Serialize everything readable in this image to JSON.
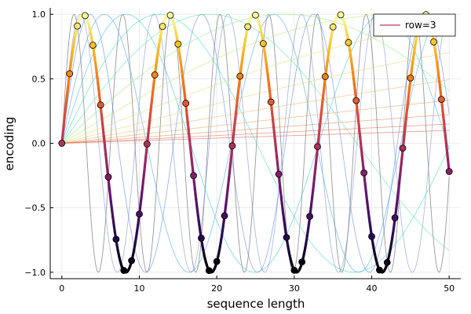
{
  "chart_data": {
    "type": "line",
    "title": "",
    "xlabel": "sequence length",
    "ylabel": "encoding",
    "xlim": [
      -1.5,
      51.5
    ],
    "ylim": [
      -1.05,
      1.05
    ],
    "xticks": [
      0,
      10,
      20,
      30,
      40,
      50
    ],
    "yticks": [
      -1.0,
      -0.5,
      0.0,
      0.5,
      1.0
    ],
    "xtick_labels": [
      "0",
      "10",
      "20",
      "30",
      "40",
      "50"
    ],
    "ytick_labels": [
      "−1.0",
      "−0.5",
      "0.0",
      "0.5",
      "1.0"
    ],
    "grid": true,
    "legend": {
      "position": "top-right",
      "entries": [
        {
          "label": "row=3",
          "color": "#c0617a"
        }
      ]
    },
    "background_curves": {
      "formula": "sin(x * f)",
      "x_range": [
        0,
        50
      ],
      "frequencies": [
        1.0,
        0.6597,
        0.4352,
        0.2871,
        0.1894,
        0.125,
        0.0825,
        0.0544,
        0.0359,
        0.0237,
        0.0156,
        0.0103,
        0.0068,
        0.0045,
        0.003,
        0.002
      ],
      "colors": [
        "#555555",
        "#7a8fd4",
        "#5f84e0",
        "#4aa0e8",
        "#3bc0e0",
        "#40d8c0",
        "#60e0a0",
        "#90e880",
        "#b8e870",
        "#d8e070",
        "#e8d070",
        "#ecb868",
        "#eca060",
        "#e88858",
        "#e07050",
        "#d86050"
      ]
    },
    "series": [
      {
        "name": "row=3",
        "formula": "sin(0.5699 * x)",
        "x": [
          0,
          1,
          2,
          3,
          4,
          5,
          6,
          7,
          8,
          9,
          10,
          11,
          12,
          13,
          14,
          15,
          16,
          17,
          18,
          19,
          20,
          21,
          22,
          23,
          24,
          25,
          26,
          27,
          28,
          29,
          30,
          31,
          32,
          33,
          34,
          35,
          36,
          37,
          38,
          39,
          40,
          41,
          42,
          43,
          44,
          45,
          46,
          47,
          48,
          49,
          50
        ],
        "y": [
          0.0,
          0.539,
          0.909,
          0.99,
          0.76,
          0.297,
          -0.262,
          -0.744,
          -0.986,
          -0.91,
          -0.549,
          -0.006,
          0.53,
          0.906,
          0.993,
          0.769,
          0.31,
          -0.25,
          -0.736,
          -0.987,
          -0.917,
          -0.562,
          -0.02,
          0.52,
          0.904,
          0.994,
          0.773,
          0.32,
          -0.24,
          -0.73,
          -0.985,
          -0.92,
          -0.567,
          -0.026,
          0.517,
          0.902,
          0.996,
          0.781,
          0.331,
          -0.229,
          -0.723,
          -0.983,
          -0.924,
          -0.578,
          -0.038,
          0.506,
          0.897,
          0.997,
          0.786,
          0.34,
          -0.219
        ]
      }
    ],
    "colormap": "inferno (value-mapped)"
  }
}
